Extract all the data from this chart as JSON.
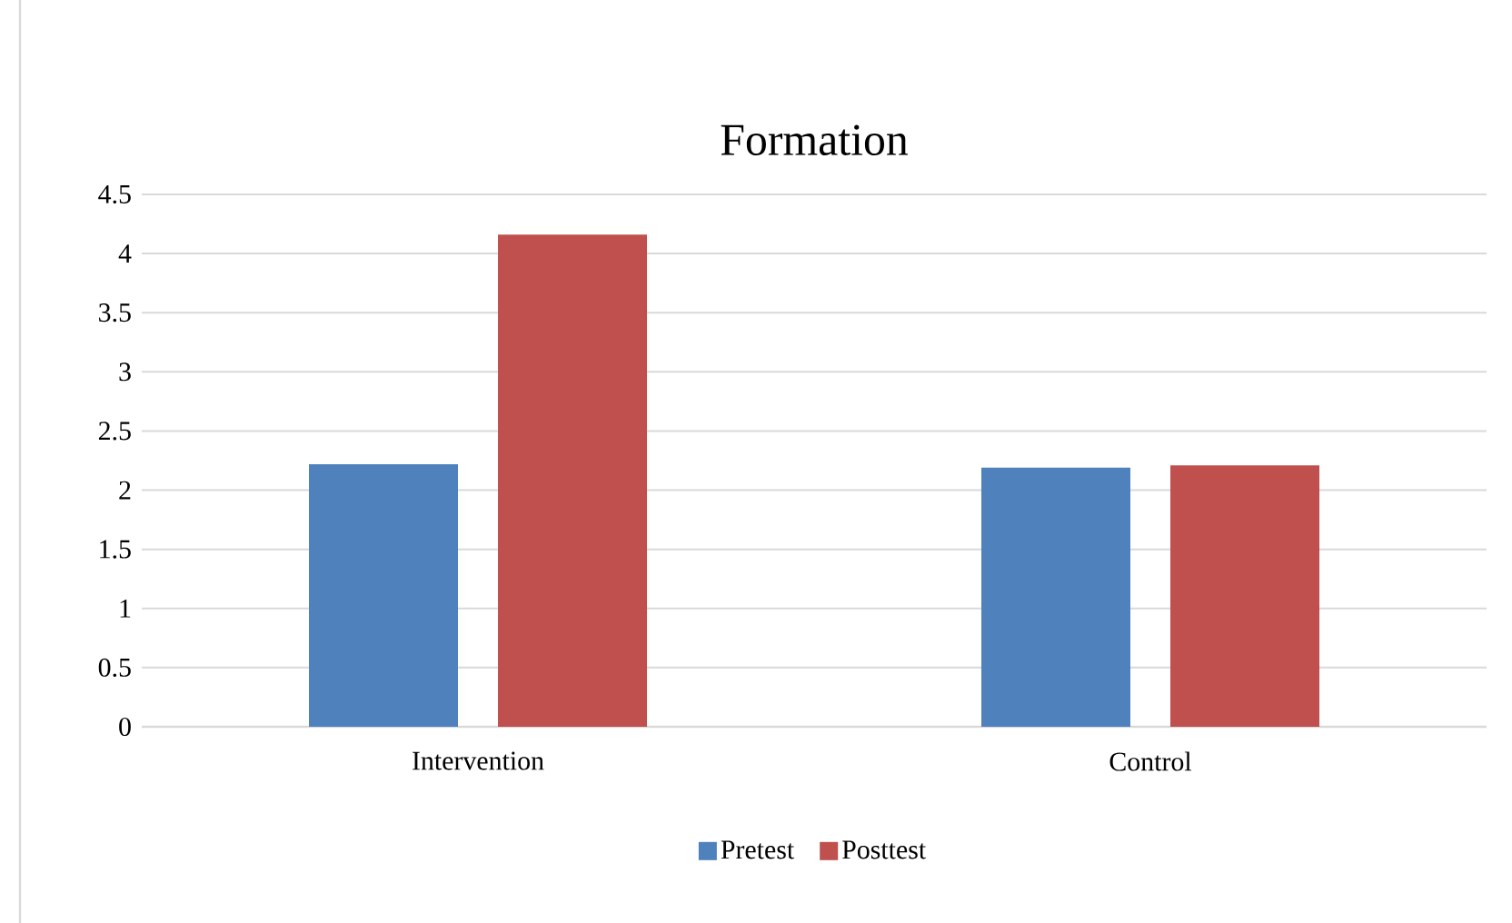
{
  "chart_data": {
    "type": "bar",
    "title": "Formation",
    "categories": [
      "Intervention",
      "Control"
    ],
    "series": [
      {
        "name": "Pretest",
        "color": "#4f81bd",
        "values": [
          2.22,
          2.19
        ]
      },
      {
        "name": "Posttest",
        "color": "#c0504d",
        "values": [
          4.16,
          2.21
        ]
      }
    ],
    "ylim": [
      0,
      4.5
    ],
    "yticks": [
      0,
      0.5,
      1,
      1.5,
      2,
      2.5,
      3,
      3.5,
      4,
      4.5
    ],
    "grid": "y",
    "legend": "bottom"
  }
}
